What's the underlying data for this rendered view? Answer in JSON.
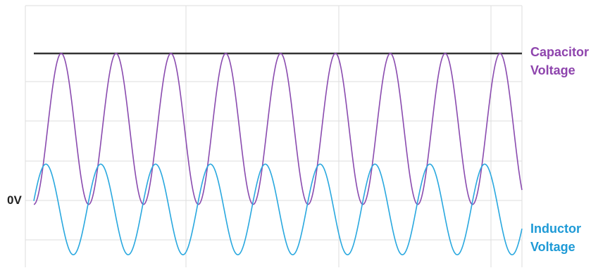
{
  "chart_data": {
    "type": "line",
    "title": "",
    "xlabel": "",
    "ylabel": "",
    "x_unit": "cycles",
    "xlim": [
      0,
      8.9
    ],
    "ylim": [
      -1.25,
      3.95
    ],
    "grid": true,
    "zero_label": "0V",
    "reference_line": {
      "value": 3.0,
      "color": "#333333"
    },
    "series": [
      {
        "name": "Capacitor Voltage",
        "name_lines": [
          "Capacitor",
          "Voltage"
        ],
        "color": "#8a4baf",
        "label_color": "#8e44ad",
        "shape": "sinusoid",
        "baseline": 0,
        "peak": 3.0,
        "min": 0,
        "cycles_visible": 8.8,
        "period": 1.0,
        "phase_note": "starts at minimum (0V) at x=0"
      },
      {
        "name": "Inductor Voltage",
        "name_lines": [
          "Inductor",
          "Voltage"
        ],
        "color": "#29a8df",
        "label_color": "#1e9ad6",
        "shape": "sinusoid",
        "center": 0.1,
        "peak": 0.8,
        "min": -1.0,
        "cycles_visible": 8.8,
        "period": 1.0,
        "phase_note": "peaks a quarter period after x=0"
      }
    ]
  }
}
